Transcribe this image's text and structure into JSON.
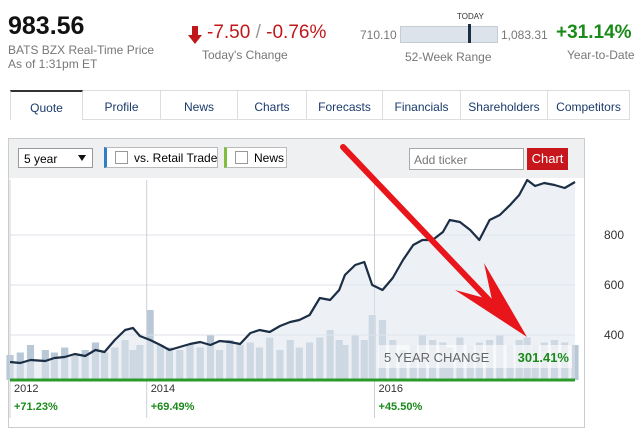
{
  "quote": {
    "price": "983.56",
    "source": "BATS BZX Real-Time Price",
    "time": "As of 1:31pm ET",
    "change": "-7.50",
    "separator": "/",
    "change_pct": "-0.76%",
    "change_label": "Today's Change",
    "range_low": "710.10",
    "range_high": "1,083.31",
    "range_marker": "TODAY",
    "range_label": "52-Week Range",
    "ytd": "+31.14%",
    "ytd_label": "Year-to-Date"
  },
  "tabs": [
    "Quote",
    "Profile",
    "News",
    "Charts",
    "Forecasts",
    "Financials",
    "Shareholders",
    "Competitors"
  ],
  "toolbar": {
    "period": "5 year",
    "compare": "vs. Retail Trade",
    "news": "News",
    "ticker_placeholder": "Add ticker",
    "button": "Chart"
  },
  "chart_data": {
    "type": "line",
    "x": [
      2012.8,
      2012.89,
      2012.98,
      2013.11,
      2013.19,
      2013.28,
      2013.37,
      2013.46,
      2013.55,
      2013.63,
      2013.72,
      2013.81,
      2013.88,
      2013.94,
      2014.03,
      2014.12,
      2014.2,
      2014.29,
      2014.38,
      2014.47,
      2014.56,
      2014.64,
      2014.73,
      2014.82,
      2014.91,
      2014.99,
      2015.08,
      2015.17,
      2015.26,
      2015.34,
      2015.43,
      2015.52,
      2015.61,
      2015.69,
      2015.74,
      2015.83,
      2015.91,
      2015.98,
      2016.07,
      2016.16,
      2016.25,
      2016.34,
      2016.42,
      2016.51,
      2016.6,
      2016.66,
      2016.75,
      2016.84,
      2016.92,
      2017.01,
      2017.1,
      2017.19,
      2017.27,
      2017.34,
      2017.41,
      2017.49,
      2017.58,
      2017.67,
      2017.76
    ],
    "series": [
      {
        "color": "#1c2e45",
        "values": [
          292,
          288,
          300,
          296,
          308,
          312,
          324,
          316,
          340,
          332,
          380,
          420,
          428,
          396,
          380,
          360,
          340,
          352,
          364,
          372,
          360,
          376,
          372,
          364,
          408,
          420,
          412,
          436,
          452,
          460,
          480,
          548,
          540,
          580,
          640,
          680,
          692,
          600,
          580,
          628,
          700,
          760,
          780,
          780,
          812,
          860,
          852,
          820,
          780,
          860,
          880,
          920,
          960,
          1020,
          996,
          1008,
          1000,
          988,
          1012
        ]
      }
    ],
    "volume": {
      "color": "#b9c8d6",
      "values": [
        320,
        330,
        360,
        340,
        330,
        350,
        320,
        340,
        370,
        330,
        350,
        380,
        340,
        360,
        500,
        360,
        350,
        340,
        360,
        350,
        400,
        340,
        380,
        360,
        370,
        350,
        390,
        340,
        380,
        350,
        370,
        390,
        420,
        380,
        360,
        400,
        380,
        480,
        460,
        380,
        340,
        360,
        400,
        380,
        370,
        350,
        390,
        360,
        370,
        380,
        400,
        360,
        380,
        390,
        360,
        370,
        380,
        370,
        360
      ]
    },
    "xlim": [
      2012.8,
      2017.76
    ],
    "xticks": [
      {
        "value": 2012.8,
        "label": "2012"
      },
      2014,
      2016
    ],
    "period_changes": [
      "+71.23%",
      "+69.49%",
      "+45.50%"
    ],
    "ylim": [
      220,
      1020
    ],
    "yticks": [
      400,
      600,
      800
    ],
    "grid": true,
    "annotation": {
      "label": "5 YEAR CHANGE",
      "value": "301.41%"
    }
  }
}
